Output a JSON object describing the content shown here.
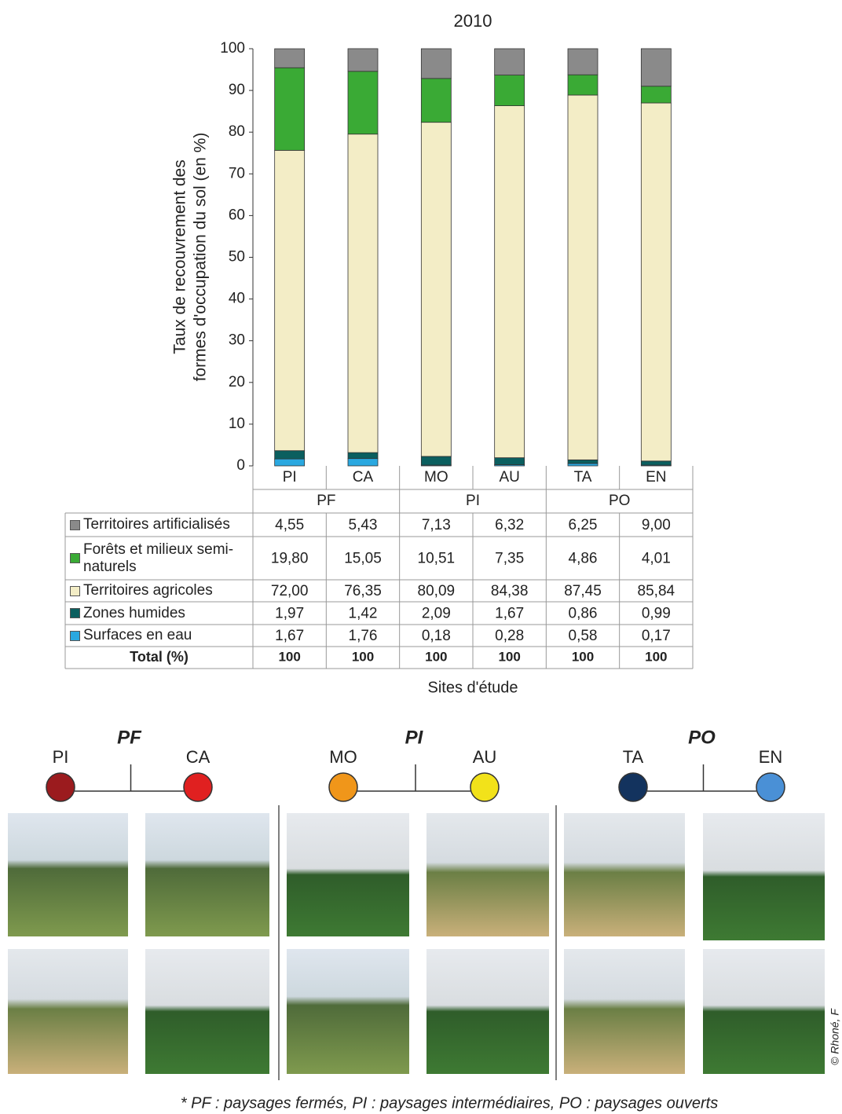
{
  "chart_data": {
    "type": "stacked_bar",
    "title": "2010",
    "y_label": [
      "Taux de recouvrement des",
      "formes d'occupation du sol (en %)"
    ],
    "x_label": "Sites d'étude",
    "categories": [
      "PI",
      "CA",
      "MO",
      "AU",
      "TA",
      "EN"
    ],
    "groups": [
      "PF",
      "PI",
      "PO"
    ],
    "ylim": [
      0,
      100
    ],
    "yticks": [
      0,
      10,
      20,
      30,
      40,
      50,
      60,
      70,
      80,
      90,
      100
    ],
    "series": [
      {
        "name": "Territoires artificialisés",
        "color": "#8a8a8a",
        "values": [
          4.55,
          5.43,
          7.13,
          6.32,
          6.25,
          9.0
        ],
        "value_labels": [
          "4,55",
          "5,43",
          "7,13",
          "6,32",
          "6,25",
          "9,00"
        ]
      },
      {
        "name": "Forêts et milieux semi-naturels",
        "color": "#3aaa35",
        "values": [
          19.8,
          15.05,
          10.51,
          7.35,
          4.86,
          4.01
        ],
        "value_labels": [
          "19,80",
          "15,05",
          "10,51",
          "7,35",
          "4,86",
          "4,01"
        ]
      },
      {
        "name": "Territoires agricoles",
        "color": "#f3edc6",
        "values": [
          72.0,
          76.35,
          80.09,
          84.38,
          87.45,
          85.84
        ],
        "value_labels": [
          "72,00",
          "76,35",
          "80,09",
          "84,38",
          "87,45",
          "85,84"
        ]
      },
      {
        "name": "Zones humides",
        "color": "#0b5f5f",
        "values": [
          1.97,
          1.42,
          2.09,
          1.67,
          0.86,
          0.99
        ],
        "value_labels": [
          "1,97",
          "1,42",
          "2,09",
          "1,67",
          "0,86",
          "0,99"
        ]
      },
      {
        "name": "Surfaces en eau",
        "color": "#2aa8e0",
        "values": [
          1.67,
          1.76,
          0.18,
          0.28,
          0.58,
          0.17
        ],
        "value_labels": [
          "1,67",
          "1,76",
          "0,18",
          "0,28",
          "0,58",
          "0,17"
        ]
      }
    ],
    "totals": {
      "label": "Total (%)",
      "values": [
        100,
        100,
        100,
        100,
        100,
        100
      ]
    }
  },
  "site_legend": [
    {
      "group": "PF",
      "sites": [
        {
          "name": "PI",
          "color": "#9b1b1e"
        },
        {
          "name": "CA",
          "color": "#e02020"
        }
      ]
    },
    {
      "group": "PI",
      "sites": [
        {
          "name": "MO",
          "color": "#f0961a"
        },
        {
          "name": "AU",
          "color": "#f2e21a"
        }
      ]
    },
    {
      "group": "PO",
      "sites": [
        {
          "name": "TA",
          "color": "#13335e"
        },
        {
          "name": "EN",
          "color": "#4a90d6"
        }
      ]
    }
  ],
  "credit": "© Rhoné, F",
  "footnote": "* PF : paysages fermés, PI : paysages intermédiaires, PO : paysages ouverts"
}
